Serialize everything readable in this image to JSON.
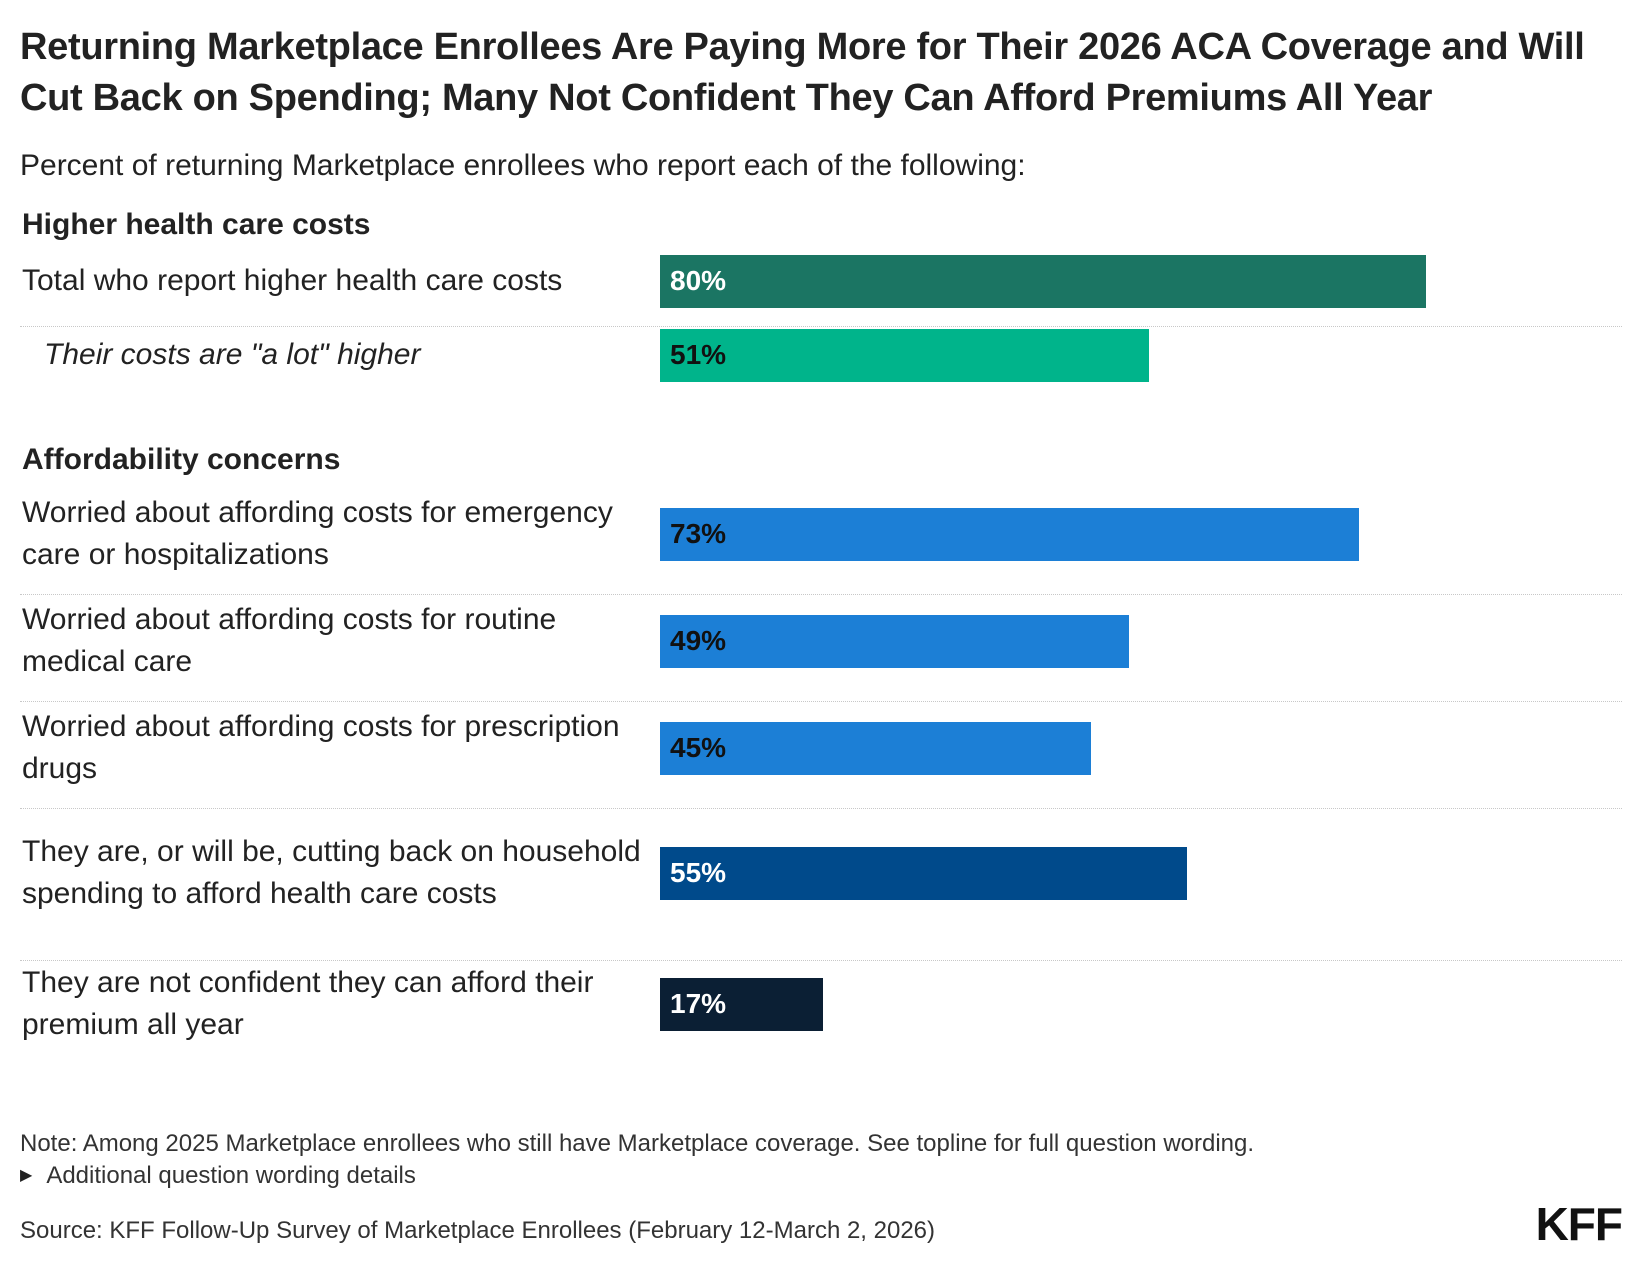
{
  "chart_data": {
    "type": "bar",
    "orientation": "horizontal",
    "title": "Returning Marketplace Enrollees Are Paying More for Their 2026 ACA Coverage and Will Cut Back on Spending; Many Not Confident They Can Afford Premiums All Year",
    "subtitle": "Percent of returning Marketplace enrollees who report each of the following:",
    "xlim": [
      0,
      100
    ],
    "unit": "%",
    "groups": [
      {
        "label": "Higher health care costs",
        "rows": [
          {
            "label": "Total who report higher health care costs",
            "value": 80,
            "value_label": "80%",
            "color": "#1b7563",
            "text_color": "#ffffff",
            "italic": false
          },
          {
            "label": "Their costs are \"a lot\" higher",
            "value": 51,
            "value_label": "51%",
            "color": "#00b48b",
            "text_color": "#111111",
            "italic": true
          }
        ]
      },
      {
        "label": "Affordability concerns",
        "rows": [
          {
            "label": "Worried about affording costs for emergency care or hospitalizations",
            "value": 73,
            "value_label": "73%",
            "color": "#1c7fd6",
            "text_color": "#111111",
            "italic": false
          },
          {
            "label": "Worried about affording costs for routine medical care",
            "value": 49,
            "value_label": "49%",
            "color": "#1c7fd6",
            "text_color": "#111111",
            "italic": false
          },
          {
            "label": "Worried about affording costs for prescription drugs",
            "value": 45,
            "value_label": "45%",
            "color": "#1c7fd6",
            "text_color": "#111111",
            "italic": false
          },
          {
            "label": "They are, or will be, cutting back on household spending to afford health care costs",
            "value": 55,
            "value_label": "55%",
            "color": "#004a8b",
            "text_color": "#ffffff",
            "italic": false
          },
          {
            "label": "They are not confident they can afford their premium all year",
            "value": 17,
            "value_label": "17%",
            "color": "#0b1f34",
            "text_color": "#ffffff",
            "italic": false
          }
        ]
      }
    ]
  },
  "footer": {
    "note": "Note: Among 2025 Marketplace enrollees who still have Marketplace coverage. See topline for full question wording.",
    "details_label": "Additional question wording details",
    "source": "Source: KFF Follow-Up Survey of Marketplace Enrollees (February 12-March 2, 2026)",
    "logo": "KFF"
  }
}
